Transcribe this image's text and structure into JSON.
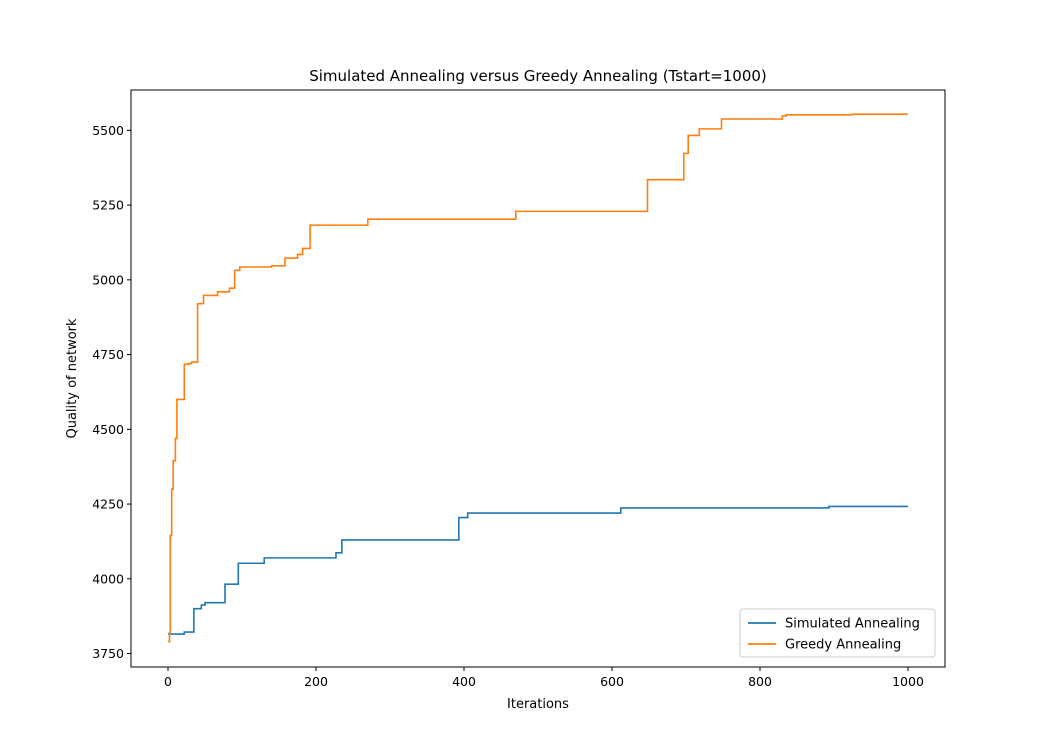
{
  "chart_data": {
    "type": "line",
    "title": "Simulated Annealing versus Greedy Annealing (Tstart=1000)",
    "xlabel": "Iterations",
    "ylabel": "Quality of network",
    "xlim": [
      -50,
      1050
    ],
    "ylim": [
      3705,
      5635
    ],
    "xticks": [
      0,
      200,
      400,
      600,
      800,
      1000
    ],
    "yticks": [
      3750,
      4000,
      4250,
      4500,
      4750,
      5000,
      5250,
      5500
    ],
    "grid": false,
    "legend": "lower right",
    "series": [
      {
        "name": "Simulated Annealing",
        "color": "#1f77b4",
        "step": true,
        "points": [
          [
            0,
            3815
          ],
          [
            22,
            3815
          ],
          [
            22,
            3822
          ],
          [
            35,
            3822
          ],
          [
            35,
            3900
          ],
          [
            45,
            3900
          ],
          [
            45,
            3912
          ],
          [
            50,
            3912
          ],
          [
            50,
            3920
          ],
          [
            77,
            3920
          ],
          [
            77,
            3982
          ],
          [
            95,
            3982
          ],
          [
            95,
            4052
          ],
          [
            130,
            4052
          ],
          [
            130,
            4070
          ],
          [
            227,
            4070
          ],
          [
            227,
            4087
          ],
          [
            235,
            4087
          ],
          [
            235,
            4130
          ],
          [
            393,
            4130
          ],
          [
            393,
            4205
          ],
          [
            405,
            4205
          ],
          [
            405,
            4220
          ],
          [
            612,
            4220
          ],
          [
            612,
            4237
          ],
          [
            893,
            4237
          ],
          [
            893,
            4242
          ],
          [
            1000,
            4242
          ]
        ]
      },
      {
        "name": "Greedy Annealing",
        "color": "#ff7f0e",
        "step": true,
        "points": [
          [
            0,
            3790
          ],
          [
            2,
            3790
          ],
          [
            2,
            3820
          ],
          [
            3,
            3820
          ],
          [
            3,
            4145
          ],
          [
            5,
            4145
          ],
          [
            5,
            4300
          ],
          [
            7,
            4300
          ],
          [
            7,
            4395
          ],
          [
            10,
            4395
          ],
          [
            10,
            4470
          ],
          [
            12,
            4470
          ],
          [
            12,
            4600
          ],
          [
            22,
            4600
          ],
          [
            22,
            4718
          ],
          [
            28,
            4718
          ],
          [
            28,
            4720
          ],
          [
            32,
            4720
          ],
          [
            32,
            4725
          ],
          [
            40,
            4725
          ],
          [
            40,
            4920
          ],
          [
            48,
            4920
          ],
          [
            48,
            4948
          ],
          [
            67,
            4948
          ],
          [
            67,
            4960
          ],
          [
            83,
            4960
          ],
          [
            83,
            4972
          ],
          [
            90,
            4972
          ],
          [
            90,
            5032
          ],
          [
            97,
            5032
          ],
          [
            97,
            5043
          ],
          [
            140,
            5043
          ],
          [
            140,
            5047
          ],
          [
            158,
            5047
          ],
          [
            158,
            5073
          ],
          [
            175,
            5073
          ],
          [
            175,
            5085
          ],
          [
            182,
            5085
          ],
          [
            182,
            5105
          ],
          [
            192,
            5105
          ],
          [
            192,
            5183
          ],
          [
            270,
            5183
          ],
          [
            270,
            5203
          ],
          [
            470,
            5203
          ],
          [
            470,
            5229
          ],
          [
            648,
            5229
          ],
          [
            648,
            5335
          ],
          [
            697,
            5335
          ],
          [
            697,
            5423
          ],
          [
            703,
            5423
          ],
          [
            703,
            5483
          ],
          [
            718,
            5483
          ],
          [
            718,
            5505
          ],
          [
            748,
            5505
          ],
          [
            748,
            5538
          ],
          [
            830,
            5538
          ],
          [
            830,
            5548
          ],
          [
            835,
            5548
          ],
          [
            835,
            5552
          ],
          [
            925,
            5552
          ],
          [
            925,
            5554
          ],
          [
            1000,
            5554
          ]
        ]
      }
    ]
  }
}
